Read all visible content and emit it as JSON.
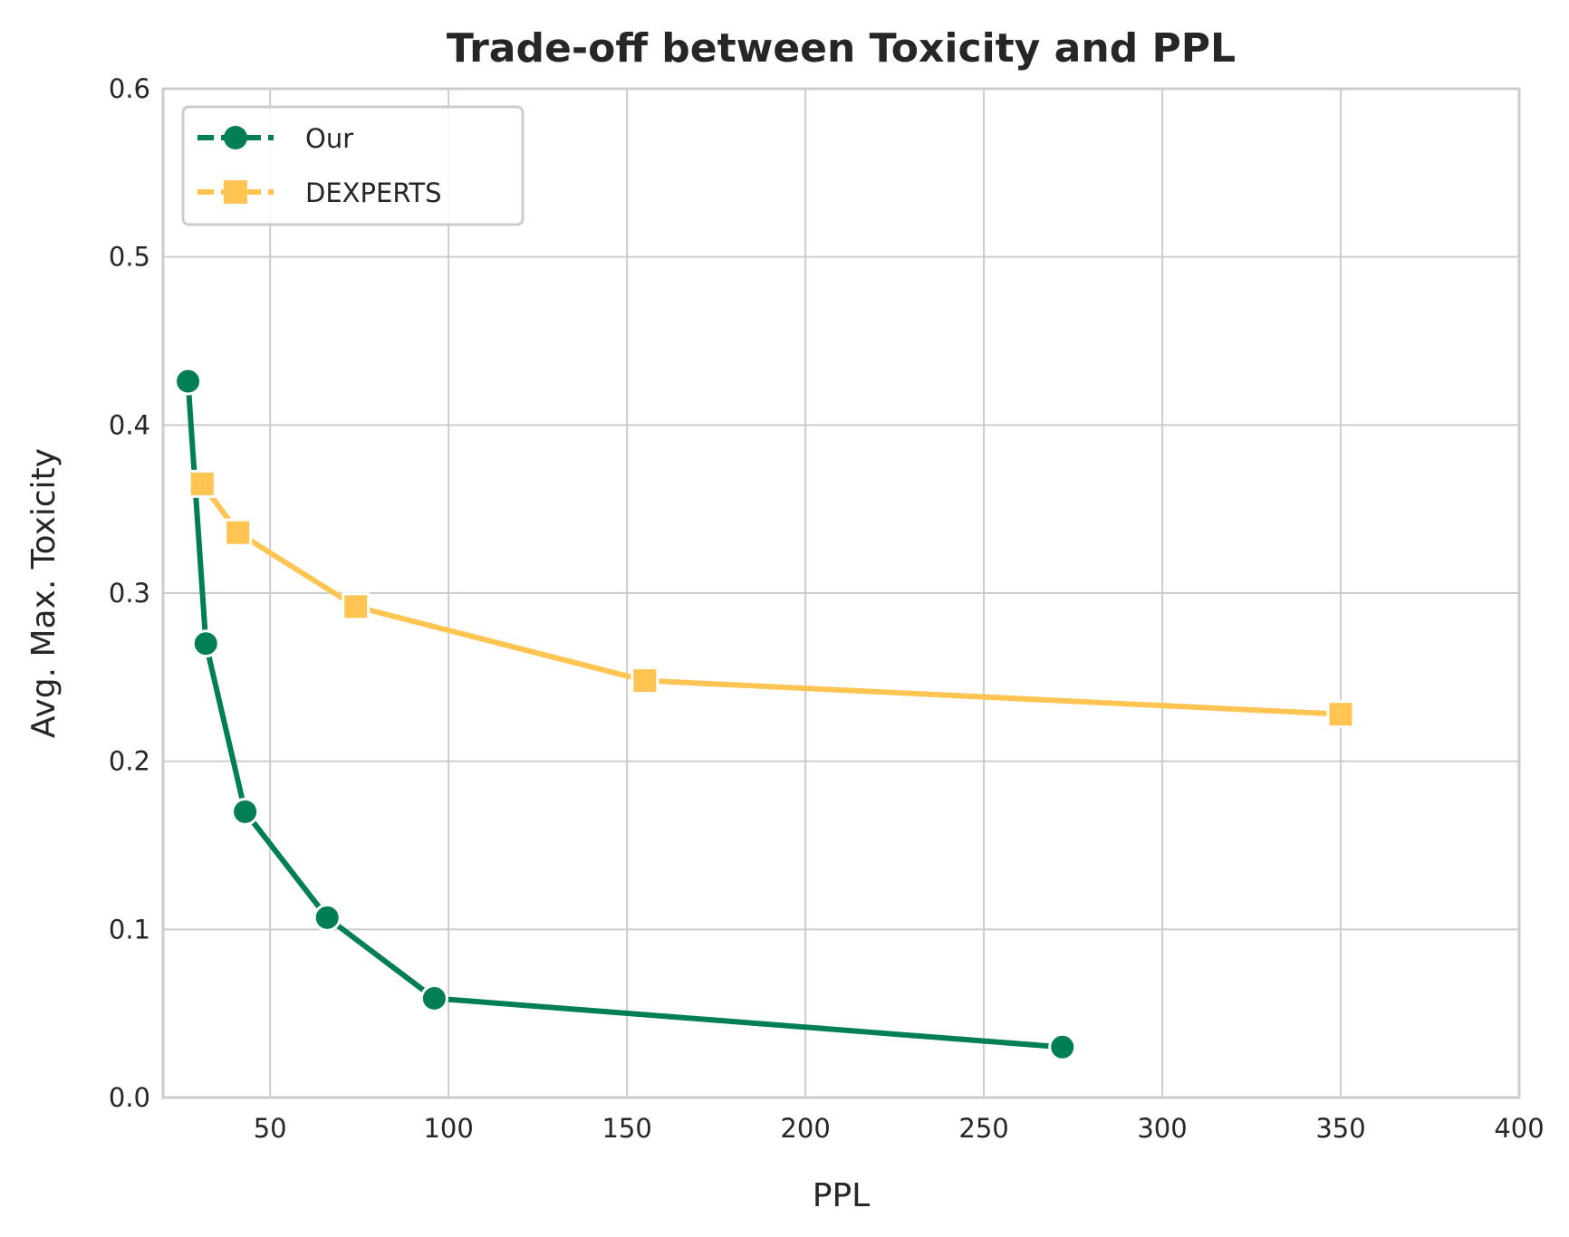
{
  "chart_data": {
    "type": "line",
    "title": "Trade-off between Toxicity and PPL",
    "xlabel": "PPL",
    "ylabel": "Avg. Max. Toxicity",
    "xlim": [
      20,
      400
    ],
    "ylim": [
      0.0,
      0.6
    ],
    "xticks": [
      50,
      100,
      150,
      200,
      250,
      300,
      350,
      400
    ],
    "yticks": [
      0.0,
      0.1,
      0.2,
      0.3,
      0.4,
      0.5,
      0.6
    ],
    "xtick_labels": [
      "50",
      "100",
      "150",
      "200",
      "250",
      "300",
      "350",
      "400"
    ],
    "ytick_labels": [
      "0.0",
      "0.1",
      "0.2",
      "0.3",
      "0.4",
      "0.5",
      "0.6"
    ],
    "grid": true,
    "legend_position": "top-left",
    "series": [
      {
        "name": "Our",
        "color": "#007f54",
        "marker": "circle",
        "x": [
          27,
          32,
          43,
          66,
          96,
          272
        ],
        "y": [
          0.426,
          0.27,
          0.17,
          0.107,
          0.059,
          0.03
        ]
      },
      {
        "name": "DEXPERTS",
        "color": "#ffc452",
        "marker": "square",
        "x": [
          31,
          41,
          74,
          155,
          350
        ],
        "y": [
          0.365,
          0.336,
          0.292,
          0.248,
          0.228
        ]
      }
    ]
  }
}
